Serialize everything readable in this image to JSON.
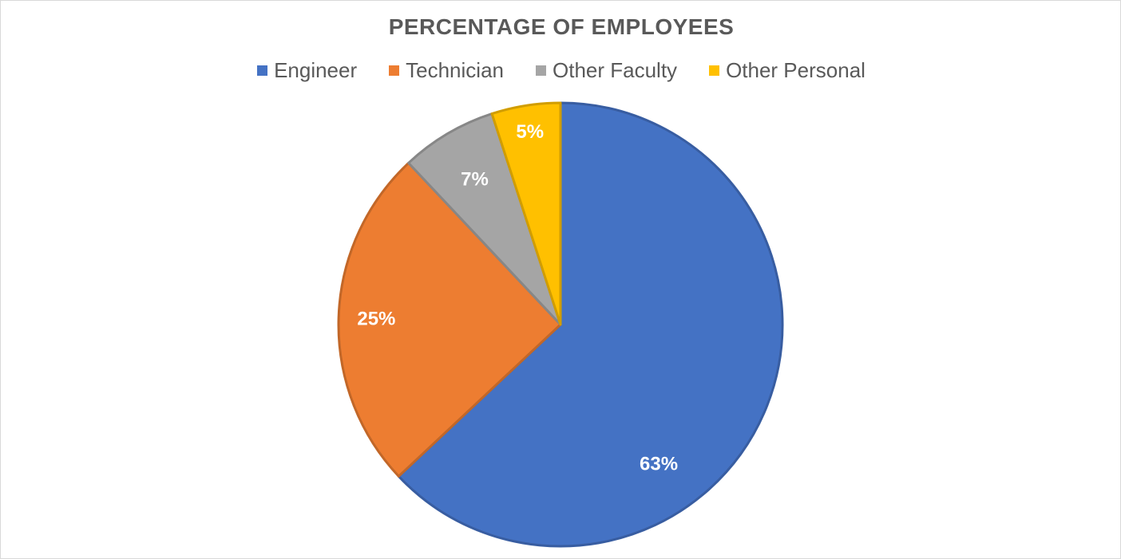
{
  "chart_data": {
    "type": "pie",
    "title": "PERCENTAGE OF EMPLOYEES",
    "categories": [
      "Engineer",
      "Technician",
      "Other Faculty",
      "Other Personal"
    ],
    "values": [
      63,
      25,
      7,
      5
    ],
    "data_labels": [
      "63%",
      "25%",
      "7%",
      "5%"
    ],
    "colors": [
      "#4472c4",
      "#ed7d31",
      "#a5a5a5",
      "#ffc000"
    ],
    "legend_position": "top"
  }
}
